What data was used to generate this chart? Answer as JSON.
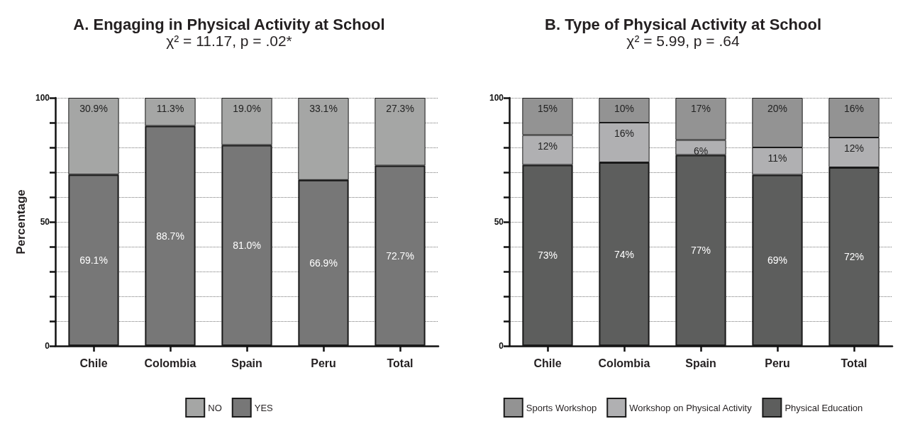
{
  "chart_data": [
    {
      "type": "bar",
      "stacked": true,
      "title": "A. Engaging in Physical Activity at School",
      "subtitle": "χ² = 11.17, p = .02*",
      "ylabel": "Percentage",
      "categories": [
        "Chile",
        "Colombia",
        "Spain",
        "Peru",
        "Total"
      ],
      "series": [
        {
          "name": "YES",
          "color": "#777777",
          "values": [
            69.1,
            88.7,
            81.0,
            66.9,
            72.7
          ],
          "value_labels": [
            "69.1%",
            "88.7%",
            "81.0%",
            "66.9%",
            "72.7%"
          ]
        },
        {
          "name": "NO",
          "color": "#a5a6a5",
          "values": [
            30.9,
            11.3,
            19.0,
            33.1,
            27.3
          ],
          "value_labels": [
            "30.9%",
            "11.3%",
            "19.0%",
            "33.1%",
            "27.3%"
          ]
        }
      ],
      "ylim": [
        0,
        100
      ],
      "yticks": [
        0,
        {
          "value": 10,
          "label": null
        },
        {
          "value": 20,
          "label": null
        },
        {
          "value": 30,
          "label": null
        },
        {
          "value": 40,
          "label": null
        },
        50,
        {
          "value": 60,
          "label": null
        },
        {
          "value": 70,
          "label": null
        },
        {
          "value": 80,
          "label": null
        },
        {
          "value": 90,
          "label": null
        },
        100
      ],
      "grid": "y",
      "legend": "bottom"
    },
    {
      "type": "bar",
      "stacked": true,
      "title": "B. Type of Physical Activity at School",
      "subtitle": "χ² = 5.99, p = .64",
      "categories": [
        "Chile",
        "Colombia",
        "Spain",
        "Peru",
        "Total"
      ],
      "series": [
        {
          "name": "Physical Education",
          "color": "#5d5e5d",
          "values": [
            73,
            74,
            77,
            69,
            72
          ],
          "value_labels": [
            "73%",
            "74%",
            "77%",
            "69%",
            "72%"
          ]
        },
        {
          "name": "Workshop on Physical Activity",
          "color": "#b0b0b2",
          "values": [
            12,
            16,
            6,
            11,
            12
          ],
          "value_labels": [
            "12%",
            "16%",
            "6%",
            "11%",
            "12%"
          ]
        },
        {
          "name": "Sports Workshop",
          "color": "#939393",
          "values": [
            15,
            10,
            17,
            20,
            16
          ],
          "value_labels": [
            "15%",
            "10%",
            "17%",
            "20%",
            "16%"
          ]
        }
      ],
      "ylim": [
        0,
        100
      ],
      "yticks": [
        0,
        {
          "value": 10,
          "label": null
        },
        {
          "value": 20,
          "label": null
        },
        {
          "value": 30,
          "label": null
        },
        {
          "value": 40,
          "label": null
        },
        50,
        {
          "value": 60,
          "label": null
        },
        {
          "value": 70,
          "label": null
        },
        {
          "value": 80,
          "label": null
        },
        {
          "value": 90,
          "label": null
        },
        100
      ],
      "grid": "y",
      "legend": "bottom"
    }
  ]
}
